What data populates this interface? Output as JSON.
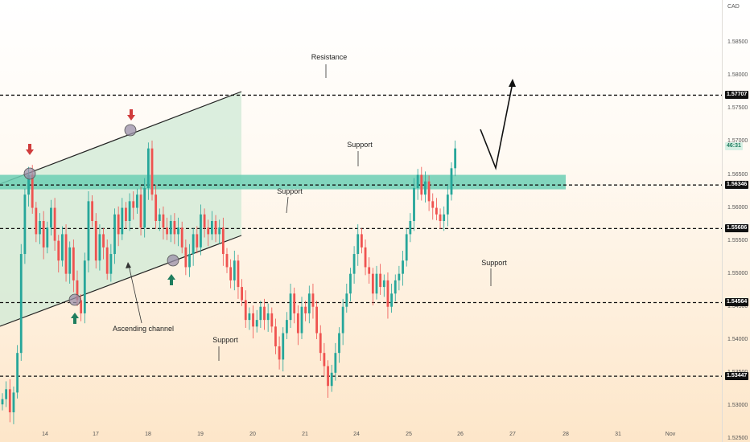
{
  "chart_data": {
    "type": "candlestick",
    "currency": "CAD",
    "ylim": [
      1.5245,
      1.5915
    ],
    "price_ticks": [
      "1.58500",
      "1.58000",
      "1.57500",
      "1.57000",
      "1.56500",
      "1.56000",
      "1.55500",
      "1.55000",
      "1.54500",
      "1.54000",
      "1.53500",
      "1.53000",
      "1.52500"
    ],
    "level_badges": [
      {
        "label": "1.57707",
        "value": 1.57707,
        "style": "dark"
      },
      {
        "label": "1.56346",
        "value": 1.56346,
        "style": "dark"
      },
      {
        "label": "1.55686",
        "value": 1.55686,
        "style": "dark"
      },
      {
        "label": "1.54564",
        "value": 1.54564,
        "style": "dark"
      },
      {
        "label": "1.53447",
        "value": 1.53447,
        "style": "dark"
      },
      {
        "label": "46:31",
        "value": 1.5693,
        "style": "green"
      }
    ],
    "x_ticks": [
      "14",
      "17",
      "18",
      "19",
      "20",
      "21",
      "24",
      "25",
      "26",
      "27",
      "28",
      "31",
      "Nov"
    ],
    "annotations": {
      "resistance": "Resistance",
      "support_1": "Support",
      "support_2": "Support",
      "support_3": "Support",
      "support_4": "Support",
      "channel": "Ascending channel"
    },
    "horizontal_levels": [
      1.57707,
      1.56346,
      1.55686,
      1.54564,
      1.53447
    ],
    "support_zone": [
      1.5628,
      1.565
    ],
    "colors": {
      "up": "#26a69a",
      "down": "#ef5350",
      "zone": "#6ccfb4",
      "channel_fill": "#cfe9d6",
      "marker_down": "#d03c3c",
      "marker_up": "#1e7d5e",
      "circle": "#9a8fa8"
    },
    "candles_close": [
      1.531,
      1.5325,
      1.529,
      1.532,
      1.538,
      1.553,
      1.562,
      1.565,
      1.56,
      1.556,
      1.558,
      1.554,
      1.557,
      1.56,
      1.555,
      1.552,
      1.556,
      1.55,
      1.554,
      1.549,
      1.546,
      1.544,
      1.552,
      1.561,
      1.558,
      1.552,
      1.556,
      1.554,
      1.55,
      1.553,
      1.559,
      1.556,
      1.56,
      1.558,
      1.561,
      1.56,
      1.562,
      1.557,
      1.563,
      1.569,
      1.562,
      1.558,
      1.559,
      1.557,
      1.556,
      1.558,
      1.556,
      1.557,
      1.554,
      1.551,
      1.553,
      1.556,
      1.554,
      1.559,
      1.557,
      1.556,
      1.558,
      1.556,
      1.557,
      1.553,
      1.551,
      1.549,
      1.552,
      1.548,
      1.546,
      1.543,
      1.544,
      1.542,
      1.543,
      1.545,
      1.543,
      1.544,
      1.542,
      1.539,
      1.537,
      1.541,
      1.543,
      1.547,
      1.544,
      1.541,
      1.545,
      1.544,
      1.547,
      1.545,
      1.541,
      1.538,
      1.536,
      1.533,
      1.535,
      1.538,
      1.541,
      1.545,
      1.547,
      1.55,
      1.553,
      1.556,
      1.554,
      1.551,
      1.55,
      1.547,
      1.55,
      1.548,
      1.549,
      1.545,
      1.547,
      1.549,
      1.55,
      1.552,
      1.556,
      1.558,
      1.563,
      1.565,
      1.562,
      1.564,
      1.561,
      1.56,
      1.559,
      1.558,
      1.559,
      1.562,
      1.566,
      1.569
    ]
  }
}
